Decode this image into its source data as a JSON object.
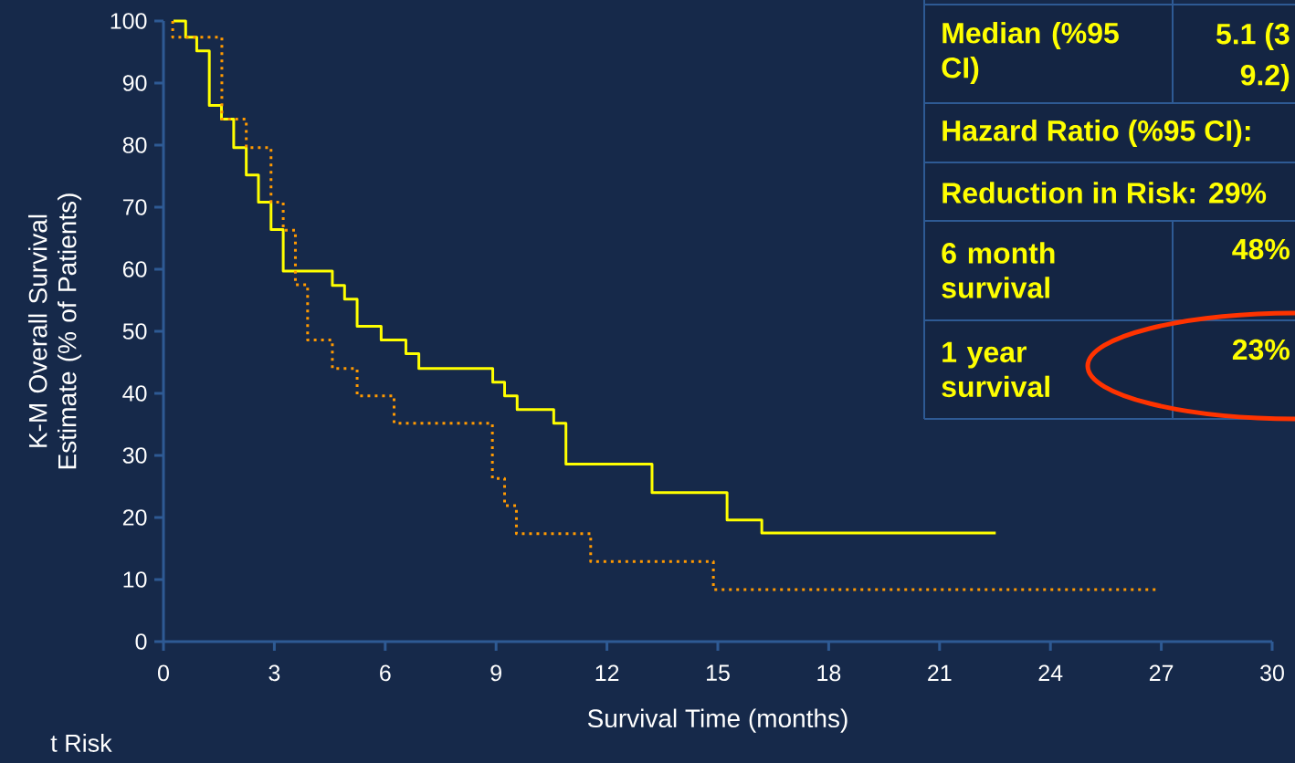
{
  "chart_data": {
    "type": "step",
    "xlabel": "Survival Time (months)",
    "ylabel": "K-M Overall Survival Estimate (% of Patients)",
    "xlim": [
      0,
      30
    ],
    "ylim": [
      0,
      100
    ],
    "xticks": [
      0,
      3,
      6,
      9,
      12,
      15,
      18,
      21,
      24,
      27,
      30
    ],
    "yticks": [
      0,
      10,
      20,
      30,
      40,
      50,
      60,
      70,
      80,
      90,
      100
    ],
    "series": [
      {
        "color": "#ffff00",
        "line_style": "solid",
        "x": [
          0.27,
          0.6,
          0.9,
          1.24,
          1.57,
          1.9,
          2.24,
          2.57,
          2.91,
          3.24,
          4.57,
          4.9,
          5.24,
          5.89,
          6.56,
          6.91,
          8.91,
          9.23,
          9.57,
          10.56,
          10.89,
          13.22,
          15.25,
          16.19,
          22.52
        ],
        "values": [
          100,
          97.4,
          95.2,
          86.4,
          84.2,
          79.6,
          75.2,
          70.8,
          66.4,
          59.7,
          57.4,
          55.2,
          50.8,
          48.6,
          46.4,
          44.0,
          41.8,
          39.6,
          37.4,
          35.2,
          28.6,
          24.0,
          19.6,
          17.5,
          17.5
        ]
      },
      {
        "color": "#ff9900",
        "line_style": "dotted",
        "x": [
          0.25,
          0.25,
          1.58,
          2.24,
          2.91,
          3.24,
          3.57,
          3.9,
          4.57,
          5.24,
          6.24,
          8.9,
          9.23,
          9.55,
          11.56,
          14.88,
          26.88
        ],
        "values": [
          100,
          97.4,
          84.2,
          79.6,
          70.8,
          66.3,
          57.5,
          48.6,
          44.0,
          39.6,
          35.2,
          26.3,
          21.9,
          17.4,
          12.9,
          8.4,
          8.4
        ]
      }
    ],
    "annotations": [
      "Median (%95 CI)",
      "5.1 (3",
      "9.2)",
      "Hazard Ratio (%95 CI):",
      "Reduction in Risk: 29%",
      "6 month survival",
      "48%",
      "1 year survival",
      "23%",
      "t Risk"
    ]
  }
}
